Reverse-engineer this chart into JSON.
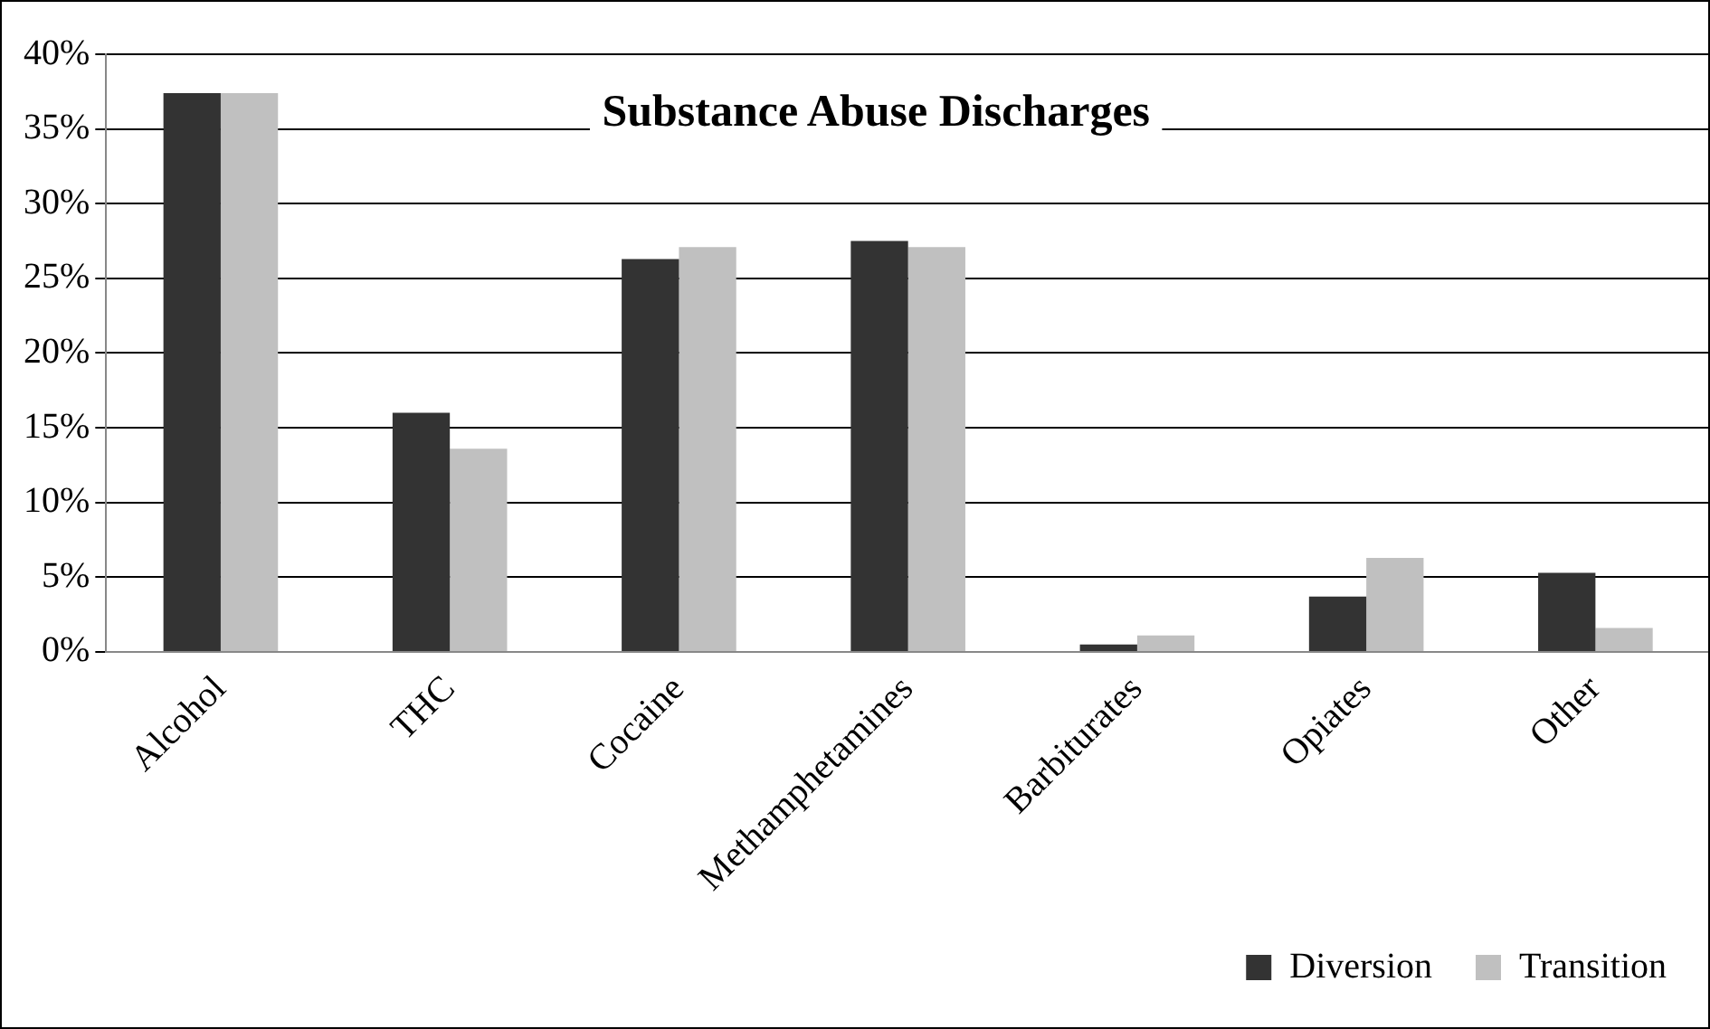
{
  "chart_data": {
    "type": "bar",
    "title": "Substance Abuse Discharges",
    "categories": [
      "Alcohol",
      "THC",
      "Cocaine",
      "Methamphetamines",
      "Barbiturates",
      "Opiates",
      "Other"
    ],
    "series": [
      {
        "name": "Diversion",
        "color": "#333333",
        "values": [
          37.4,
          16.0,
          26.3,
          27.5,
          0.5,
          3.7,
          5.3
        ]
      },
      {
        "name": "Transition",
        "color": "#c0c0c0",
        "values": [
          37.4,
          13.6,
          27.1,
          27.1,
          1.1,
          6.3,
          1.6
        ]
      }
    ],
    "ylim": [
      0,
      40
    ],
    "yticks": [
      {
        "value": 0,
        "label": "0%"
      },
      {
        "value": 5,
        "label": "5%"
      },
      {
        "value": 10,
        "label": "10%"
      },
      {
        "value": 15,
        "label": "15%"
      },
      {
        "value": 20,
        "label": "20%"
      },
      {
        "value": 25,
        "label": "25%"
      },
      {
        "value": 30,
        "label": "30%"
      },
      {
        "value": 35,
        "label": "35%"
      },
      {
        "value": 40,
        "label": "40%"
      }
    ],
    "grid": "y",
    "legend": "bottom right"
  }
}
